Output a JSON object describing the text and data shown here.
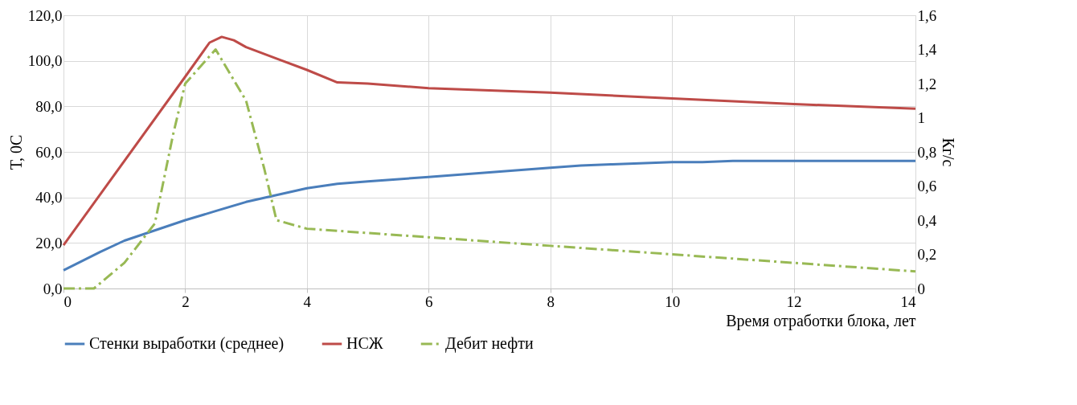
{
  "chart_data": {
    "type": "line",
    "xlabel": "Время отработки блока, лет",
    "ylabel": "Т, 0С",
    "y2label": "Кг/с",
    "xlim": [
      0,
      14
    ],
    "xticks": [
      0,
      2,
      4,
      6,
      8,
      10,
      12,
      14
    ],
    "ylim": [
      0,
      120
    ],
    "yticks": [
      {
        "value": 0,
        "label": "0,0"
      },
      {
        "value": 20,
        "label": "20,0"
      },
      {
        "value": 40,
        "label": "40,0"
      },
      {
        "value": 60,
        "label": "60,0"
      },
      {
        "value": 80,
        "label": "80,0"
      },
      {
        "value": 100,
        "label": "100,0"
      },
      {
        "value": 120,
        "label": "120,0"
      }
    ],
    "y2lim": [
      0,
      1.6
    ],
    "y2ticks": [
      0,
      {
        "value": 0.2,
        "label": "0,2"
      },
      {
        "value": 0.4,
        "label": "0,4"
      },
      {
        "value": 0.6,
        "label": "0,6"
      },
      {
        "value": 0.8,
        "label": "0,8"
      },
      1,
      {
        "value": 1.2,
        "label": "1,2"
      },
      {
        "value": 1.4,
        "label": "1,4"
      },
      {
        "value": 1.6,
        "label": "1,6"
      }
    ],
    "grid": true,
    "legend": "bottom",
    "marker": "none",
    "series": [
      {
        "name": "Стенки выработки (среднее)",
        "color": "#4a7ebb",
        "line_style": "solid",
        "x": [
          0,
          0.6,
          1,
          2,
          2.5,
          3,
          3.5,
          4,
          4.5,
          5,
          6,
          7,
          8,
          8.5,
          9,
          10,
          10.5,
          11,
          14
        ],
        "values": [
          8,
          16,
          21,
          30,
          34,
          38,
          41,
          44,
          46,
          47,
          49,
          51,
          53,
          54,
          54.5,
          55.5,
          55.5,
          56,
          56
        ]
      },
      {
        "name": "НСЖ",
        "color": "#be4b48",
        "line_style": "solid",
        "x": [
          0,
          2,
          2.4,
          2.6,
          2.8,
          3,
          3.5,
          4,
          4.5,
          5,
          6,
          8,
          10,
          12,
          14
        ],
        "values": [
          19,
          93,
          108,
          110.5,
          109,
          106,
          101,
          96,
          90.5,
          90,
          88,
          86,
          83.5,
          81,
          79
        ]
      },
      {
        "name": "Дебит нефти",
        "color": "#98b954",
        "line_style": "dashed",
        "axis": "y2",
        "x": [
          0,
          0.5,
          1,
          1.5,
          1.8,
          2,
          2.5,
          3,
          3.3,
          3.5,
          4,
          6,
          8,
          10,
          12,
          14
        ],
        "values": [
          0,
          0,
          0.15,
          0.38,
          0.9,
          1.2,
          1.4,
          1.1,
          0.7,
          0.4,
          0.35,
          0.3,
          0.25,
          0.2,
          0.15,
          0.1
        ]
      }
    ]
  }
}
